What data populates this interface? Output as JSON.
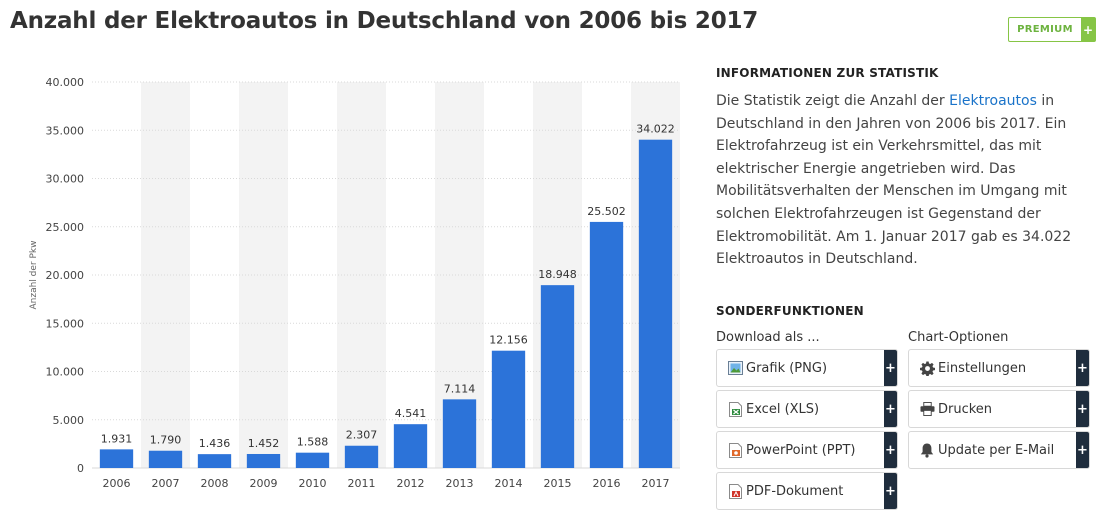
{
  "title": "Anzahl der Elektroautos in Deutschland von 2006 bis 2017",
  "premium_label": "PREMIUM",
  "premium_plus": "+",
  "info": {
    "heading": "INFORMATIONEN ZUR STATISTIK",
    "text_before": "Die Statistik zeigt die Anzahl der ",
    "link": "Elektroautos",
    "text_after": " in Deutschland in den Jahren von 2006 bis 2017. Ein Elektrofahrzeug ist ein Verkehrsmittel, das mit elektrischer Energie angetrieben wird. Das Mobilitätsverhalten der Menschen im Umgang mit solchen Elektrofahrzeugen ist Gegenstand der Elektromobilität. Am 1. Januar 2017 gab es 34.022 Elektroautos in Deutschland."
  },
  "special": {
    "heading": "SONDERFUNKTIONEN",
    "download_title": "Download als ...",
    "download": [
      {
        "label": "Grafik (PNG)",
        "icon": "image-file-icon"
      },
      {
        "label": "Excel (XLS)",
        "icon": "excel-file-icon"
      },
      {
        "label": "PowerPoint (PPT)",
        "icon": "powerpoint-file-icon"
      },
      {
        "label": "PDF-Dokument",
        "icon": "pdf-file-icon"
      }
    ],
    "options_title": "Chart-Optionen",
    "options": [
      {
        "label": "Einstellungen",
        "icon": "gear-icon"
      },
      {
        "label": "Drucken",
        "icon": "printer-icon"
      },
      {
        "label": "Update per E-Mail",
        "icon": "bell-icon"
      }
    ],
    "plus": "+"
  },
  "colors": {
    "bar": "#2c73d9",
    "band": "#f3f3f3",
    "grid": "#d9d9d9",
    "premium": "#86c545",
    "link": "#1a73c9",
    "plus_button": "#1f2d3d"
  },
  "chart_data": {
    "type": "bar",
    "categories": [
      "2006",
      "2007",
      "2008",
      "2009",
      "2010",
      "2011",
      "2012",
      "2013",
      "2014",
      "2015",
      "2016",
      "2017"
    ],
    "values": [
      1931,
      1790,
      1436,
      1452,
      1588,
      2307,
      4541,
      7114,
      12156,
      18948,
      25502,
      34022
    ],
    "value_labels": [
      "1.931",
      "1.790",
      "1.436",
      "1.452",
      "1.588",
      "2.307",
      "4.541",
      "7.114",
      "12.156",
      "18.948",
      "25.502",
      "34.022"
    ],
    "ylabel": "Anzahl der Pkw",
    "ylim": [
      0,
      40000
    ],
    "yticks": [
      0,
      5000,
      10000,
      15000,
      20000,
      25000,
      30000,
      35000,
      40000
    ],
    "ytick_labels": [
      "0",
      "5.000",
      "10.000",
      "15.000",
      "20.000",
      "25.000",
      "30.000",
      "35.000",
      "40.000"
    ],
    "grid": true,
    "legend": "none"
  }
}
